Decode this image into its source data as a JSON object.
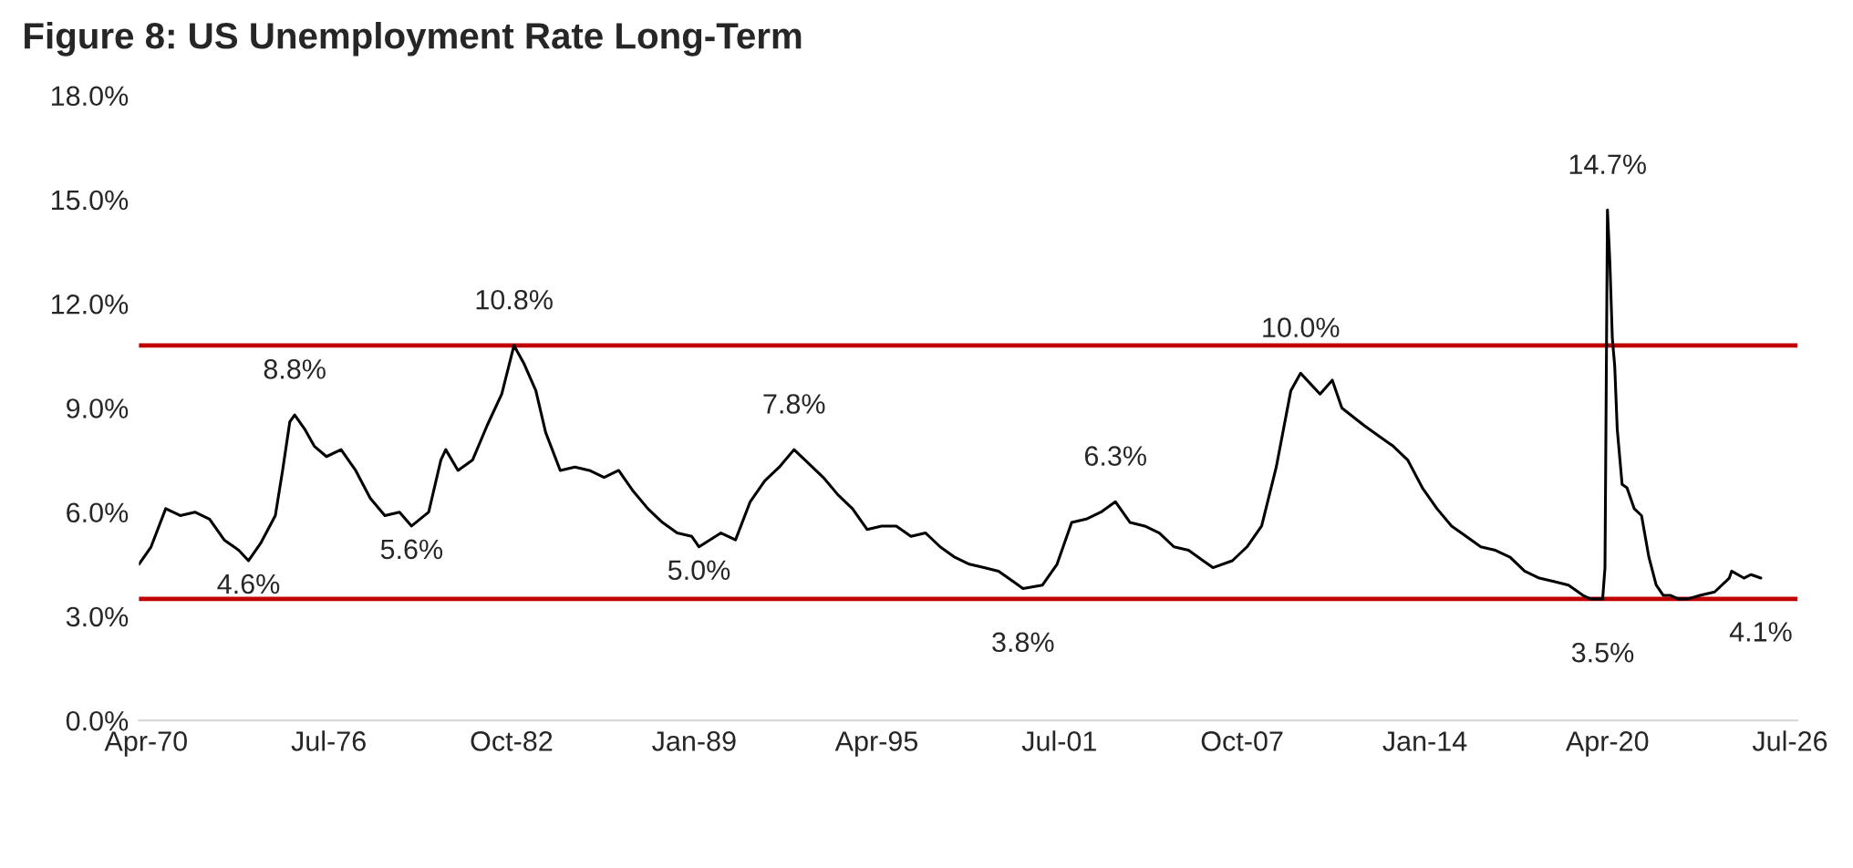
{
  "chart_data": {
    "type": "line",
    "title": "Figure 8: US Unemployment Rate Long-Term",
    "x": [
      "1970-01",
      "1970-06",
      "1970-12",
      "1971-06",
      "1971-12",
      "1972-06",
      "1972-12",
      "1973-06",
      "1973-10",
      "1974-03",
      "1974-09",
      "1974-12",
      "1975-03",
      "1975-05",
      "1975-09",
      "1976-01",
      "1976-06",
      "1976-12",
      "1977-06",
      "1977-12",
      "1978-06",
      "1978-12",
      "1979-05",
      "1979-12",
      "1980-05",
      "1980-07",
      "1980-12",
      "1981-06",
      "1981-12",
      "1982-06",
      "1982-11",
      "1983-03",
      "1983-08",
      "1983-12",
      "1984-06",
      "1984-12",
      "1985-06",
      "1985-12",
      "1986-06",
      "1986-12",
      "1987-06",
      "1987-12",
      "1988-06",
      "1988-12",
      "1989-03",
      "1989-12",
      "1990-06",
      "1990-12",
      "1991-06",
      "1991-12",
      "1992-06",
      "1992-12",
      "1993-06",
      "1993-12",
      "1994-06",
      "1994-12",
      "1995-06",
      "1995-12",
      "1996-06",
      "1996-12",
      "1997-06",
      "1997-12",
      "1998-06",
      "1998-12",
      "1999-06",
      "1999-12",
      "2000-04",
      "2000-12",
      "2001-06",
      "2001-12",
      "2002-06",
      "2002-12",
      "2003-06",
      "2003-12",
      "2004-06",
      "2004-12",
      "2005-06",
      "2005-12",
      "2006-06",
      "2006-10",
      "2007-06",
      "2007-12",
      "2008-06",
      "2008-12",
      "2009-06",
      "2009-10",
      "2010-06",
      "2010-11",
      "2011-03",
      "2011-12",
      "2012-06",
      "2012-12",
      "2013-06",
      "2013-12",
      "2014-06",
      "2014-12",
      "2015-06",
      "2015-12",
      "2016-06",
      "2016-12",
      "2017-06",
      "2017-12",
      "2018-06",
      "2018-12",
      "2019-06",
      "2019-09",
      "2020-02",
      "2020-03",
      "2020-04",
      "2020-05",
      "2020-06",
      "2020-07",
      "2020-08",
      "2020-10",
      "2020-12",
      "2021-03",
      "2021-06",
      "2021-09",
      "2021-12",
      "2022-03",
      "2022-06",
      "2022-09",
      "2023-01",
      "2023-06",
      "2023-12",
      "2024-06",
      "2024-07",
      "2024-12",
      "2025-03",
      "2025-07"
    ],
    "series": [
      {
        "color": "#000000",
        "values": [
          4.5,
          5.0,
          6.1,
          5.9,
          6.0,
          5.8,
          5.2,
          4.9,
          4.6,
          5.1,
          5.9,
          7.2,
          8.6,
          8.8,
          8.4,
          7.9,
          7.6,
          7.8,
          7.2,
          6.4,
          5.9,
          6.0,
          5.6,
          6.0,
          7.5,
          7.8,
          7.2,
          7.5,
          8.5,
          9.4,
          10.8,
          10.3,
          9.5,
          8.3,
          7.2,
          7.3,
          7.2,
          7.0,
          7.2,
          6.6,
          6.1,
          5.7,
          5.4,
          5.3,
          5.0,
          5.4,
          5.2,
          6.3,
          6.9,
          7.3,
          7.8,
          7.4,
          7.0,
          6.5,
          6.1,
          5.5,
          5.6,
          5.6,
          5.3,
          5.4,
          5.0,
          4.7,
          4.5,
          4.4,
          4.3,
          4.0,
          3.8,
          3.9,
          4.5,
          5.7,
          5.8,
          6.0,
          6.3,
          5.7,
          5.6,
          5.4,
          5.0,
          4.9,
          4.6,
          4.4,
          4.6,
          5.0,
          5.6,
          7.3,
          9.5,
          10.0,
          9.4,
          9.8,
          9.0,
          8.5,
          8.2,
          7.9,
          7.5,
          6.7,
          6.1,
          5.6,
          5.3,
          5.0,
          4.9,
          4.7,
          4.3,
          4.1,
          4.0,
          3.9,
          3.6,
          3.5,
          3.5,
          4.4,
          14.7,
          13.2,
          11.0,
          10.2,
          8.4,
          6.8,
          6.7,
          6.1,
          5.9,
          4.7,
          3.9,
          3.6,
          3.6,
          3.5,
          3.5,
          3.6,
          3.7,
          4.1,
          4.3,
          4.1,
          4.2,
          4.1
        ]
      }
    ],
    "ylim": [
      0,
      18
    ],
    "yticks": [
      {
        "value": 0,
        "label": "0.0%"
      },
      {
        "value": 3,
        "label": "3.0%"
      },
      {
        "value": 6,
        "label": "6.0%"
      },
      {
        "value": 9,
        "label": "9.0%"
      },
      {
        "value": 12,
        "label": "12.0%"
      },
      {
        "value": 15,
        "label": "15.0%"
      },
      {
        "value": 18,
        "label": "18.0%"
      }
    ],
    "xlim": [
      "1970-01",
      "2026-10"
    ],
    "xticks": [
      {
        "value": "1970-04",
        "label": "Apr-70"
      },
      {
        "value": "1976-07",
        "label": "Jul-76"
      },
      {
        "value": "1982-10",
        "label": "Oct-82"
      },
      {
        "value": "1989-01",
        "label": "Jan-89"
      },
      {
        "value": "1995-04",
        "label": "Apr-95"
      },
      {
        "value": "2001-07",
        "label": "Jul-01"
      },
      {
        "value": "2007-10",
        "label": "Oct-07"
      },
      {
        "value": "2014-01",
        "label": "Jan-14"
      },
      {
        "value": "2020-04",
        "label": "Apr-20"
      },
      {
        "value": "2026-07",
        "label": "Jul-26"
      }
    ],
    "ref_lines": [
      {
        "axis": "y",
        "value": 10.8,
        "color": "#c00000"
      },
      {
        "axis": "y",
        "value": 3.5,
        "color": "#c00000"
      }
    ],
    "annotations": [
      {
        "text": "4.6%",
        "x": "1973-10",
        "y": 4.6
      },
      {
        "text": "8.8%",
        "x": "1975-05",
        "y": 8.8
      },
      {
        "text": "5.6%",
        "x": "1979-05",
        "y": 5.6
      },
      {
        "text": "10.8%",
        "x": "1982-11",
        "y": 10.8
      },
      {
        "text": "5.0%",
        "x": "1989-03",
        "y": 5.0
      },
      {
        "text": "7.8%",
        "x": "1992-06",
        "y": 7.8
      },
      {
        "text": "3.8%",
        "x": "2000-04",
        "y": 3.8
      },
      {
        "text": "6.3%",
        "x": "2003-06",
        "y": 6.3
      },
      {
        "text": "10.0%",
        "x": "2009-10",
        "y": 10.0
      },
      {
        "text": "3.5%",
        "x": "2020-02",
        "y": 3.5
      },
      {
        "text": "14.7%",
        "x": "2020-04",
        "y": 14.7
      },
      {
        "text": "4.1%",
        "x": "2025-07",
        "y": 4.1
      }
    ],
    "grid": false,
    "legend": false,
    "marker": "none",
    "line_style": "solid"
  }
}
